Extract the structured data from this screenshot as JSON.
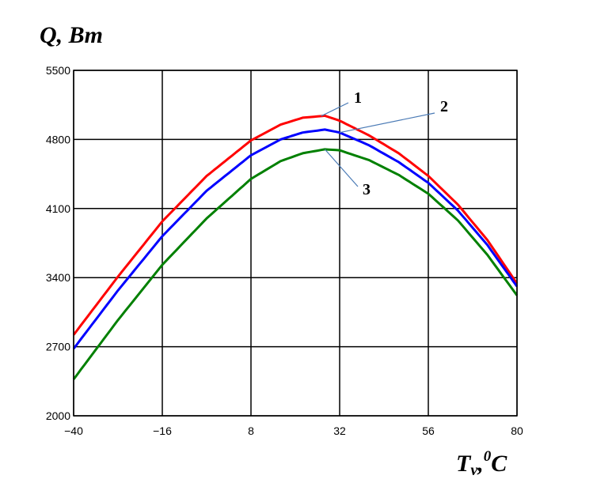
{
  "chart_data": {
    "type": "line",
    "ylabel": "Q, Bт",
    "xlabel_main": "T",
    "xlabel_sub": "v",
    "xlabel_tail": ",",
    "xlabel_sup": "0",
    "xlabel_unit": "C",
    "xlim": [
      -40,
      80
    ],
    "ylim": [
      2000,
      5500
    ],
    "x_ticks": [
      -40,
      -16,
      8,
      32,
      56,
      80
    ],
    "y_ticks": [
      2000,
      2700,
      3400,
      4100,
      4800,
      5500
    ],
    "grid": true,
    "series": [
      {
        "name": "1",
        "color": "#ff0000",
        "x": [
          -40,
          -28,
          -16,
          -4,
          8,
          16,
          22,
          28,
          32,
          40,
          48,
          56,
          64,
          72,
          80
        ],
        "y": [
          2820,
          3410,
          3970,
          4430,
          4790,
          4950,
          5020,
          5040,
          4990,
          4840,
          4660,
          4430,
          4140,
          3780,
          3340
        ]
      },
      {
        "name": "2",
        "color": "#0000ff",
        "x": [
          -40,
          -28,
          -16,
          -4,
          8,
          16,
          22,
          28,
          32,
          40,
          48,
          56,
          64,
          72,
          80
        ],
        "y": [
          2680,
          3270,
          3820,
          4280,
          4640,
          4800,
          4870,
          4900,
          4870,
          4740,
          4570,
          4360,
          4080,
          3730,
          3310
        ]
      },
      {
        "name": "3",
        "color": "#008000",
        "x": [
          -40,
          -28,
          -16,
          -4,
          8,
          16,
          22,
          28,
          32,
          40,
          48,
          56,
          64,
          72,
          80
        ],
        "y": [
          2370,
          2970,
          3530,
          4000,
          4400,
          4580,
          4660,
          4700,
          4690,
          4590,
          4440,
          4250,
          3980,
          3630,
          3220
        ]
      }
    ],
    "annotations": [
      "1",
      "2",
      "3"
    ]
  }
}
